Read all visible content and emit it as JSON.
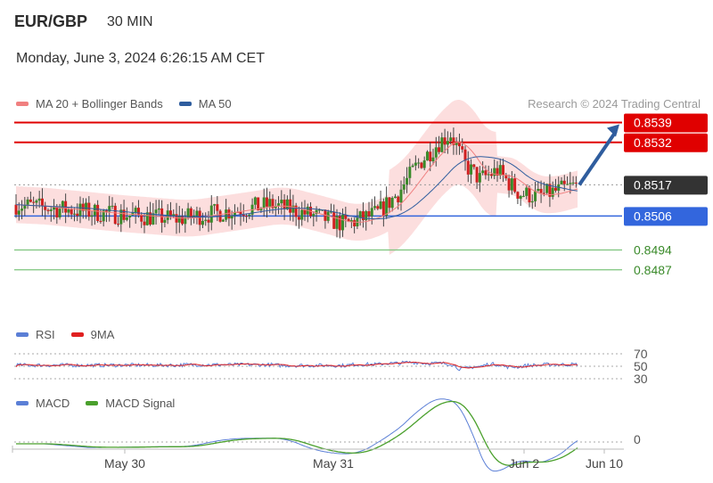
{
  "header": {
    "pair": "EUR/GBP",
    "timeframe": "30 MIN",
    "datetime": "Monday, June 3, 2024 6:26:15 AM CET"
  },
  "legend_main": [
    {
      "label": "MA 20 + Bollinger Bands",
      "color": "#f08080"
    },
    {
      "label": "MA 50",
      "color": "#2f5d9e"
    }
  ],
  "credit": "Research © 2024 Trading Central",
  "legend_rsi": [
    {
      "label": "RSI",
      "color": "#5b7fd6"
    },
    {
      "label": "9MA",
      "color": "#e02020"
    }
  ],
  "legend_macd": [
    {
      "label": "MACD",
      "color": "#5b7fd6"
    },
    {
      "label": "MACD Signal",
      "color": "#4aa02c"
    }
  ],
  "colors": {
    "up": "#3a8a2a",
    "down": "#d02020",
    "resistance": "#e00000",
    "pivot": "#3366dd",
    "support": "#7cc47c",
    "current": "#333333",
    "band_fill": "#fbd3d3",
    "arrow": "#2f5d9e"
  },
  "chart_data": [
    {
      "type": "candlestick",
      "name": "price",
      "x_ticks": [
        "May 30",
        "May 31",
        "Jun 2",
        "Jun 10"
      ],
      "ylim": [
        0.848,
        0.8542
      ],
      "levels": [
        {
          "label": "0.8539",
          "value": 0.8539,
          "kind": "resistance"
        },
        {
          "label": "0.8532",
          "value": 0.8532,
          "kind": "resistance"
        },
        {
          "label": "0.8517",
          "value": 0.8517,
          "kind": "current"
        },
        {
          "label": "0.8506",
          "value": 0.8506,
          "kind": "pivot"
        },
        {
          "label": "0.8494",
          "value": 0.8494,
          "kind": "support"
        },
        {
          "label": "0.8487",
          "value": 0.8487,
          "kind": "support"
        }
      ],
      "forecast_arrow": {
        "from": 0.8517,
        "to": 0.8539
      },
      "series": [
        {
          "name": "MA 20 + Bollinger Bands"
        },
        {
          "name": "MA 50"
        }
      ]
    },
    {
      "type": "line",
      "name": "RSI",
      "y_ticks": [
        {
          "label": "70",
          "value": 70
        },
        {
          "label": "50",
          "value": 50
        },
        {
          "label": "30",
          "value": 30
        }
      ],
      "ylim": [
        20,
        80
      ],
      "series": [
        {
          "name": "RSI"
        },
        {
          "name": "9MA"
        }
      ]
    },
    {
      "type": "line",
      "name": "MACD",
      "y_ticks": [
        {
          "label": "0",
          "value": 0
        }
      ],
      "series": [
        {
          "name": "MACD"
        },
        {
          "name": "MACD Signal"
        }
      ]
    }
  ]
}
